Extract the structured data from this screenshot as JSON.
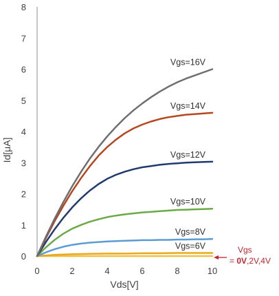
{
  "chart_data": {
    "type": "line",
    "xlabel": "Vds[V]",
    "ylabel": "Id[μA]",
    "xlim": [
      0,
      10
    ],
    "ylim": [
      0,
      8
    ],
    "xticks": [
      0,
      2,
      4,
      6,
      8,
      10
    ],
    "yticks": [
      0,
      1,
      2,
      3,
      4,
      5,
      6,
      7,
      8
    ],
    "grid": false,
    "series": [
      {
        "name": "Vgs=16V",
        "color": "#6e6e6e",
        "x": [
          0,
          0.5,
          1,
          1.5,
          2,
          2.5,
          3,
          3.5,
          4,
          4.5,
          5,
          5.5,
          6,
          6.5,
          7,
          7.5,
          8,
          8.5,
          9,
          9.5,
          10
        ],
        "y": [
          0,
          0.62,
          1.2,
          1.74,
          2.24,
          2.7,
          3.12,
          3.5,
          3.84,
          4.15,
          4.43,
          4.68,
          4.9,
          5.1,
          5.28,
          5.44,
          5.58,
          5.7,
          5.8,
          5.9,
          6.0
        ]
      },
      {
        "name": "Vgs=14V",
        "color": "#b5471f",
        "x": [
          0,
          0.5,
          1,
          1.5,
          2,
          2.5,
          3,
          3.5,
          4,
          4.5,
          5,
          5.5,
          6,
          6.5,
          7,
          7.5,
          8,
          8.5,
          9,
          9.5,
          10
        ],
        "y": [
          0,
          0.58,
          1.12,
          1.62,
          2.08,
          2.5,
          2.88,
          3.22,
          3.5,
          3.74,
          3.94,
          4.1,
          4.22,
          4.32,
          4.4,
          4.46,
          4.5,
          4.54,
          4.56,
          4.58,
          4.6
        ]
      },
      {
        "name": "Vgs=12V",
        "color": "#1f3a6e",
        "x": [
          0,
          0.5,
          1,
          1.5,
          2,
          2.5,
          3,
          3.5,
          4,
          4.5,
          5,
          5.5,
          6,
          6.5,
          7,
          7.5,
          8,
          8.5,
          9,
          9.5,
          10
        ],
        "y": [
          0,
          0.45,
          0.86,
          1.23,
          1.56,
          1.85,
          2.1,
          2.31,
          2.48,
          2.61,
          2.71,
          2.79,
          2.85,
          2.89,
          2.93,
          2.96,
          2.98,
          3.0,
          3.01,
          3.02,
          3.03
        ]
      },
      {
        "name": "Vgs=10V",
        "color": "#6aaa45",
        "x": [
          0,
          0.5,
          1,
          1.5,
          2,
          2.5,
          3,
          3.5,
          4,
          4.5,
          5,
          5.5,
          6,
          6.5,
          7,
          7.5,
          8,
          8.5,
          9,
          9.5,
          10
        ],
        "y": [
          0,
          0.28,
          0.52,
          0.72,
          0.88,
          1.0,
          1.1,
          1.18,
          1.25,
          1.3,
          1.34,
          1.37,
          1.4,
          1.42,
          1.44,
          1.46,
          1.48,
          1.49,
          1.5,
          1.51,
          1.52
        ]
      },
      {
        "name": "Vgs=8V",
        "color": "#5b9bd5",
        "x": [
          0,
          0.5,
          1,
          1.5,
          2,
          2.5,
          3,
          3.5,
          4,
          4.5,
          5,
          5.5,
          6,
          6.5,
          7,
          7.5,
          8,
          8.5,
          9,
          9.5,
          10
        ],
        "y": [
          0,
          0.12,
          0.22,
          0.3,
          0.36,
          0.4,
          0.43,
          0.45,
          0.47,
          0.48,
          0.49,
          0.5,
          0.51,
          0.51,
          0.52,
          0.52,
          0.53,
          0.53,
          0.54,
          0.54,
          0.55
        ]
      },
      {
        "name": "Vgs=6V",
        "color": "#e8a820",
        "x": [
          0,
          1,
          2,
          3,
          4,
          5,
          6,
          7,
          8,
          9,
          10
        ],
        "y": [
          0,
          0.04,
          0.06,
          0.07,
          0.08,
          0.08,
          0.09,
          0.09,
          0.1,
          0.1,
          0.1
        ]
      },
      {
        "name": "Vgs=0V,2V,4V",
        "color": "#f0c040",
        "x": [
          0,
          10
        ],
        "y": [
          0,
          0
        ]
      }
    ],
    "annotations": {
      "labels": [
        "Vgs=16V",
        "Vgs=14V",
        "Vgs=12V",
        "Vgs=10V",
        "Vgs=8V",
        "Vgs=6V"
      ],
      "note_line1": "Vgs",
      "note_eq": "= ",
      "note_bold": "0V",
      "note_rest": ",2V,4V",
      "note_color": "#c0262d"
    }
  },
  "watermark": "\u0000"
}
